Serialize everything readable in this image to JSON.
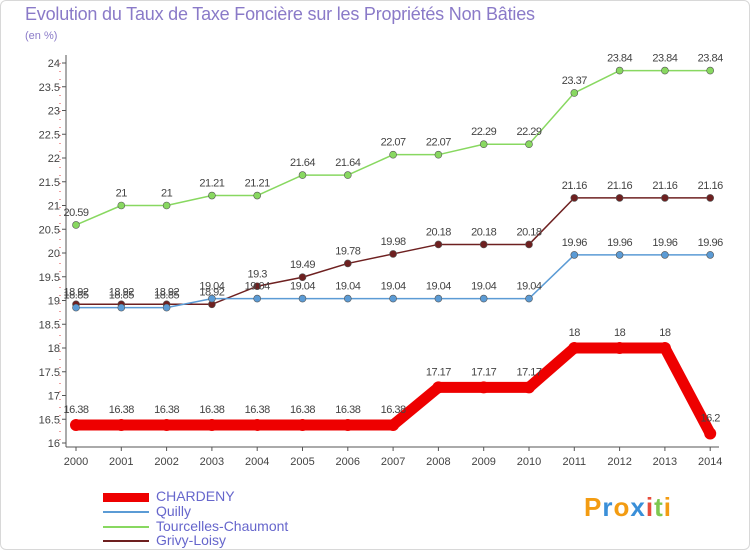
{
  "title": "Evolution du Taux de Taxe Foncière sur les Propriétés Non Bâties",
  "unit_label": "(en %)",
  "logo": {
    "letters": [
      "P",
      "r",
      "o",
      "x",
      "i",
      "t",
      "i"
    ],
    "colors": [
      "#f39c12",
      "#3a8fd8",
      "#f39c12",
      "#3a8fd8",
      "#e74c3c",
      "#7ec850",
      "#f39c12"
    ]
  },
  "chart_data": {
    "type": "line",
    "x": [
      "2000",
      "2001",
      "2002",
      "2003",
      "2004",
      "2005",
      "2006",
      "2007",
      "2008",
      "2009",
      "2010",
      "2011",
      "2012",
      "2013",
      "2014"
    ],
    "ylim": [
      16,
      24
    ],
    "yticks": [
      16,
      16.5,
      17,
      17.5,
      18,
      18.5,
      19,
      19.5,
      20,
      20.5,
      21,
      21.5,
      22,
      22.5,
      23,
      23.5,
      24
    ],
    "ytick_labels": [
      "16",
      "16.5",
      "17",
      "17.5",
      "18",
      "18.5",
      "19",
      "19.5",
      "20",
      "20.5",
      "21",
      "21.5",
      "22",
      "22.5",
      "23",
      "23.5",
      "24"
    ],
    "grid": false,
    "series": [
      {
        "name": "CHARDENY",
        "color": "#ee0000",
        "width": "thick",
        "values": [
          16.38,
          16.38,
          16.38,
          16.38,
          16.38,
          16.38,
          16.38,
          16.38,
          17.17,
          17.17,
          17.17,
          18,
          18,
          18,
          16.2
        ],
        "labels": [
          "16.38",
          "16.38",
          "16.38",
          "16.38",
          "16.38",
          "16.38",
          "16.38",
          "16.38",
          "17.17",
          "17.17",
          "17.17",
          "18",
          "18",
          "18",
          "16.2"
        ]
      },
      {
        "name": "Quilly",
        "color": "#5b9bd5",
        "width": "thin",
        "values": [
          18.85,
          18.85,
          18.85,
          19.04,
          19.04,
          19.04,
          19.04,
          19.04,
          19.04,
          19.04,
          19.04,
          19.96,
          19.96,
          19.96,
          19.96
        ],
        "labels": [
          "18.85",
          "18.85",
          "18.85",
          "19.04",
          "19.04",
          "19.04",
          "19.04",
          "19.04",
          "19.04",
          "19.04",
          "19.04",
          "19.96",
          "19.96",
          "19.96",
          "19.96"
        ]
      },
      {
        "name": "Tourcelles-Chaumont",
        "color": "#88d860",
        "width": "thin",
        "values": [
          20.59,
          21,
          21,
          21.21,
          21.21,
          21.64,
          21.64,
          22.07,
          22.07,
          22.29,
          22.29,
          23.37,
          23.84,
          23.84,
          23.84
        ],
        "labels": [
          "20.59",
          "21",
          "21",
          "21.21",
          "21.21",
          "21.64",
          "21.64",
          "22.07",
          "22.07",
          "22.29",
          "22.29",
          "23.37",
          "23.84",
          "23.84",
          "23.84"
        ]
      },
      {
        "name": "Grivy-Loisy",
        "color": "#6e2020",
        "width": "thin",
        "values": [
          18.92,
          18.92,
          18.92,
          18.92,
          19.3,
          19.49,
          19.78,
          19.98,
          20.18,
          20.18,
          20.18,
          21.16,
          21.16,
          21.16,
          21.16
        ],
        "labels": [
          "18.92",
          "18.92",
          "18.92",
          "18.92",
          "19.3",
          "19.49",
          "19.78",
          "19.98",
          "20.18",
          "20.18",
          "20.18",
          "21.16",
          "21.16",
          "21.16",
          "21.16"
        ]
      }
    ],
    "legend": [
      "CHARDENY",
      "Quilly",
      "Tourcelles-Chaumont",
      "Grivy-Loisy"
    ]
  }
}
